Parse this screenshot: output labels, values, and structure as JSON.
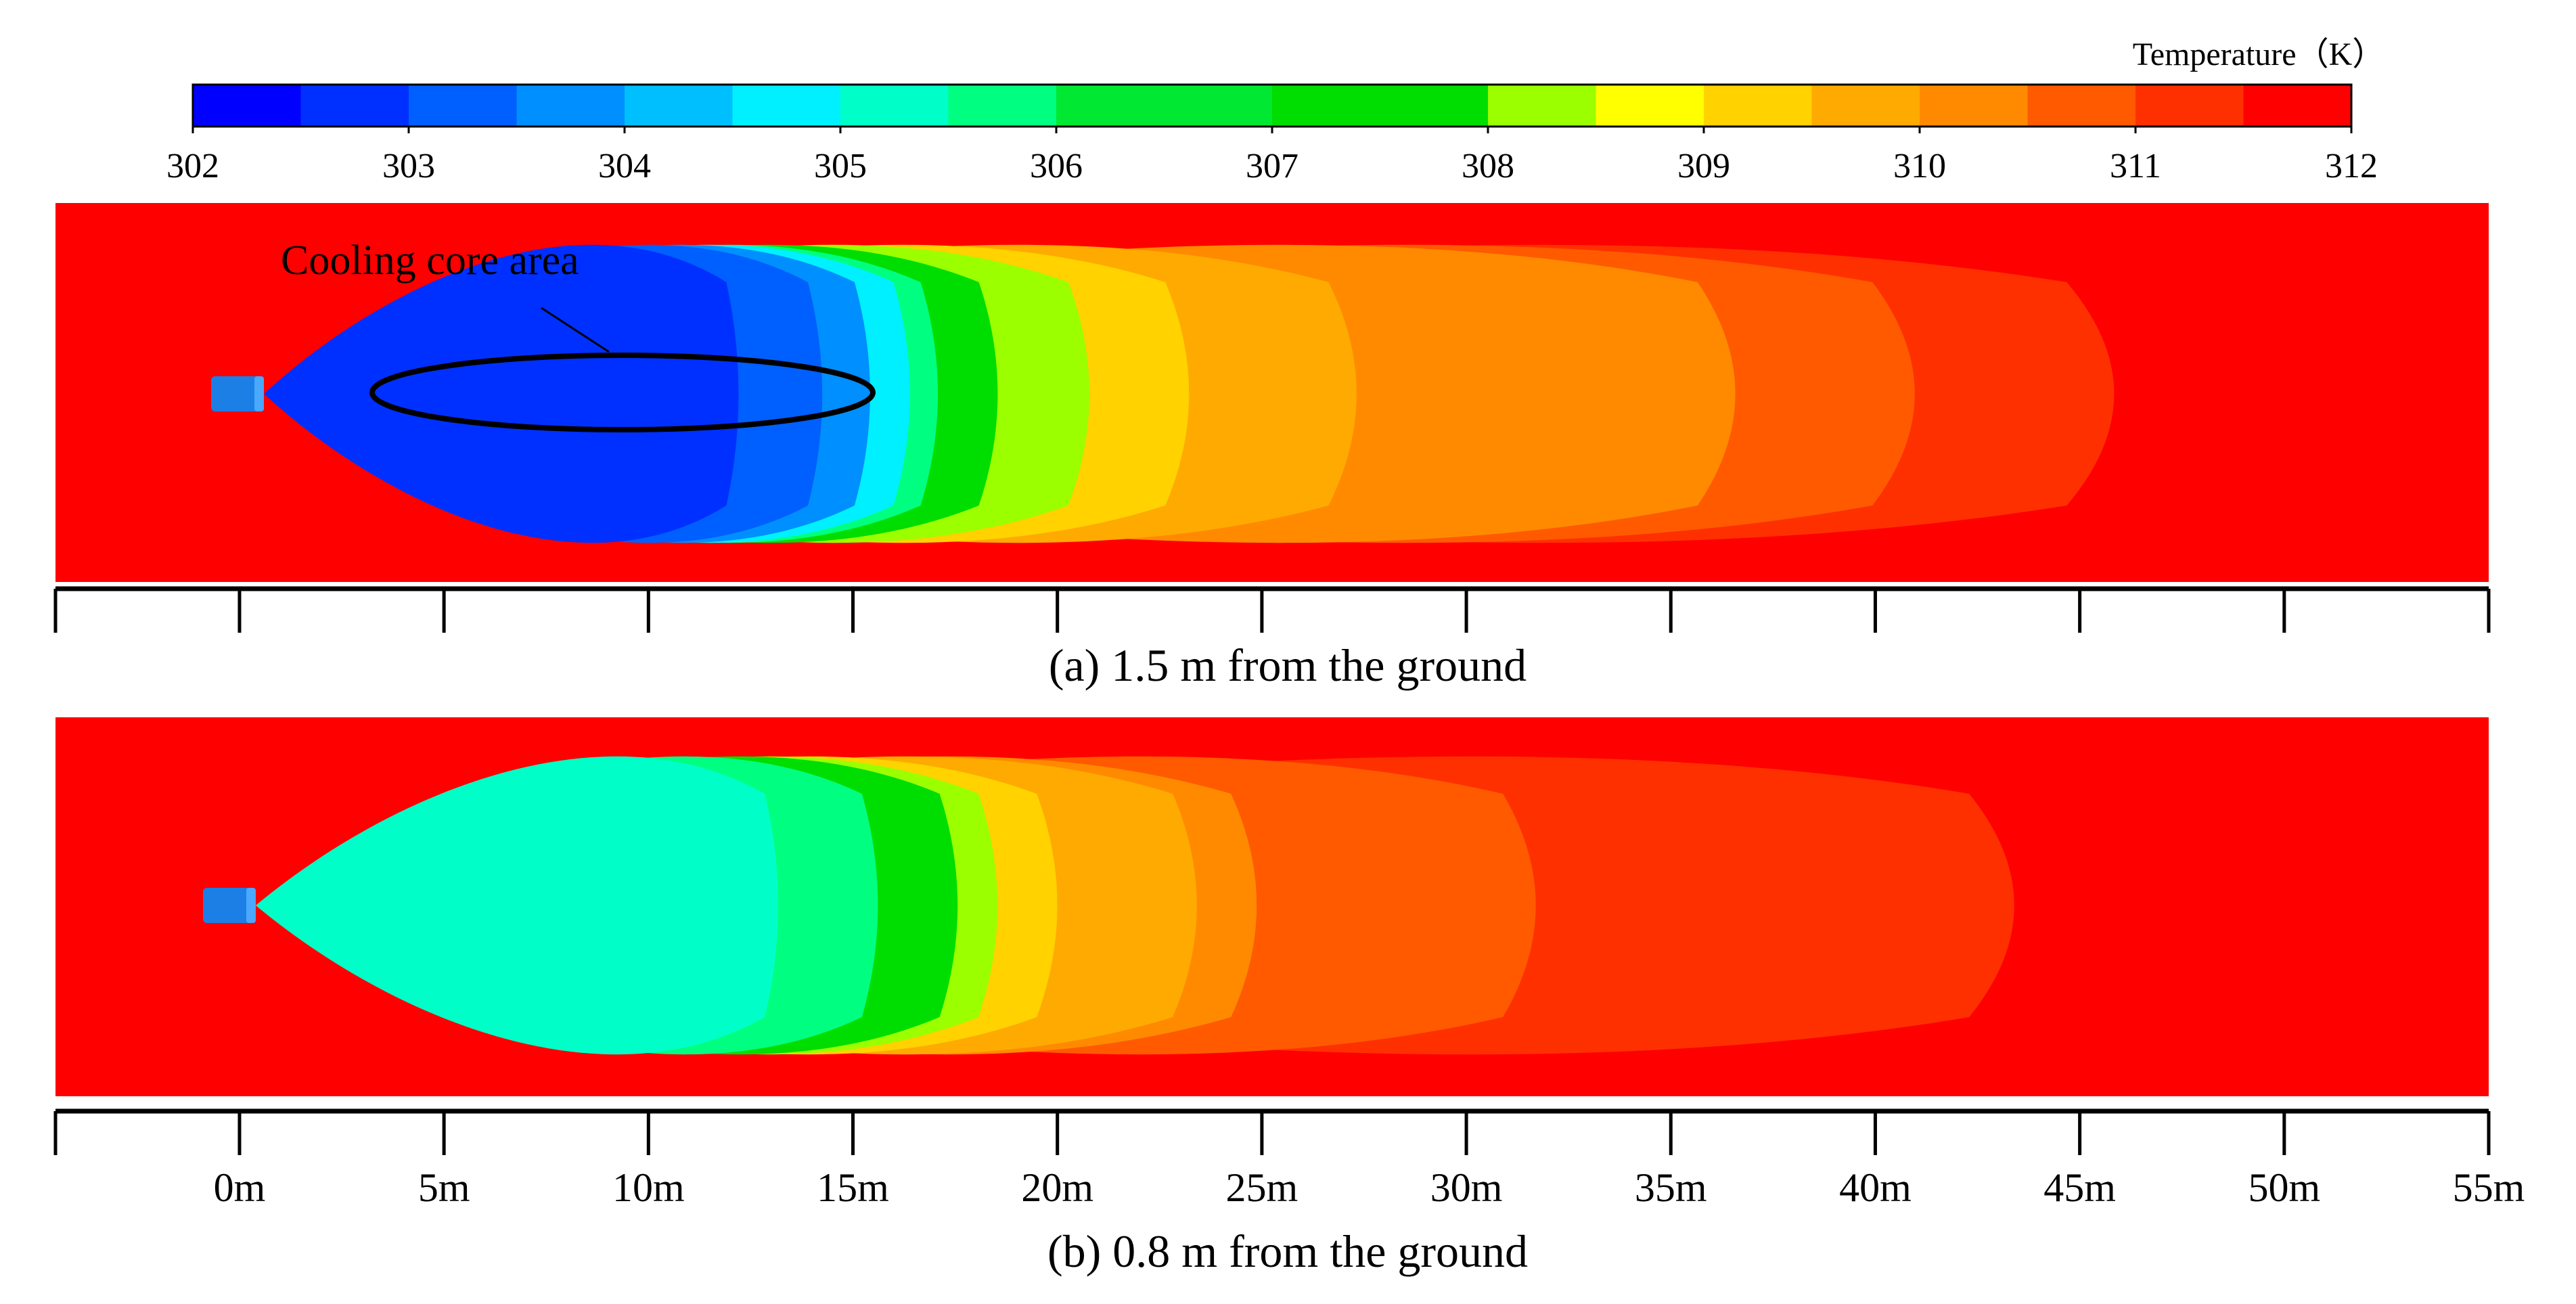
{
  "chart_data": {
    "type": "heatmap",
    "legend": {
      "title": "Temperature（K）",
      "min": 302,
      "max": 312,
      "tick_labels": [
        "302",
        "303",
        "304",
        "305",
        "306",
        "307",
        "308",
        "309",
        "310",
        "311",
        "312"
      ],
      "levels": [
        {
          "from": 302.0,
          "to": 302.5,
          "color": "#0000ff"
        },
        {
          "from": 302.5,
          "to": 303.0,
          "color": "#0030ff"
        },
        {
          "from": 303.0,
          "to": 303.5,
          "color": "#005fff"
        },
        {
          "from": 303.5,
          "to": 304.0,
          "color": "#008fff"
        },
        {
          "from": 304.0,
          "to": 304.5,
          "color": "#00bfff"
        },
        {
          "from": 304.5,
          "to": 305.0,
          "color": "#00f0ff"
        },
        {
          "from": 305.0,
          "to": 305.5,
          "color": "#00ffc8"
        },
        {
          "from": 305.5,
          "to": 306.0,
          "color": "#00ff80"
        },
        {
          "from": 306.0,
          "to": 307.0,
          "color": "#00e832"
        },
        {
          "from": 307.0,
          "to": 308.0,
          "color": "#00dd00"
        },
        {
          "from": 308.0,
          "to": 308.5,
          "color": "#9bff00"
        },
        {
          "from": 308.5,
          "to": 309.0,
          "color": "#ffff00"
        },
        {
          "from": 309.0,
          "to": 309.5,
          "color": "#ffd200"
        },
        {
          "from": 309.5,
          "to": 310.0,
          "color": "#ffaa00"
        },
        {
          "from": 310.0,
          "to": 310.5,
          "color": "#ff8a00"
        },
        {
          "from": 310.5,
          "to": 311.0,
          "color": "#ff5a00"
        },
        {
          "from": 311.0,
          "to": 311.5,
          "color": "#ff3000"
        },
        {
          "from": 311.5,
          "to": 312.0,
          "color": "#ff0000"
        }
      ]
    },
    "x_axis": {
      "labels": [
        "0m",
        "5m",
        "10m",
        "15m",
        "20m",
        "25m",
        "30m",
        "35m",
        "40m",
        "45m",
        "50m",
        "55m"
      ],
      "range": [
        -4.5,
        55
      ],
      "unit": "m"
    },
    "panels": [
      {
        "caption": "(a) 1.5 m from the ground",
        "annotation": "Cooling  core area",
        "core_region_x": [
          3.2,
          15.6
        ],
        "isotherm_extents": [
          {
            "temperature": 311.0,
            "x_end": 47.0
          },
          {
            "temperature": 310.5,
            "x_end": 42.0
          },
          {
            "temperature": 310.0,
            "x_end": 37.5
          },
          {
            "temperature": 309.5,
            "x_end": 28.0
          },
          {
            "temperature": 309.0,
            "x_end": 23.8
          },
          {
            "temperature": 308.0,
            "x_end": 21.3
          },
          {
            "temperature": 307.0,
            "x_end": 19.0
          },
          {
            "temperature": 305.5,
            "x_end": 17.5
          },
          {
            "temperature": 304.5,
            "x_end": 16.8
          },
          {
            "temperature": 303.5,
            "x_end": 15.8
          },
          {
            "temperature": 303.0,
            "x_end": 14.6
          },
          {
            "temperature": 302.5,
            "x_end": 12.5
          }
        ]
      },
      {
        "caption": "(b) 0.8 m from the ground",
        "isotherm_extents": [
          {
            "temperature": 311.0,
            "x_end": 44.5
          },
          {
            "temperature": 310.5,
            "x_end": 32.5
          },
          {
            "temperature": 310.0,
            "x_end": 25.5
          },
          {
            "temperature": 309.5,
            "x_end": 24.0
          },
          {
            "temperature": 309.0,
            "x_end": 20.5
          },
          {
            "temperature": 308.0,
            "x_end": 19.0
          },
          {
            "temperature": 307.0,
            "x_end": 18.0
          },
          {
            "temperature": 305.5,
            "x_end": 16.0
          },
          {
            "temperature": 305.0,
            "x_end": 13.5
          }
        ]
      }
    ],
    "colors": {
      "outline": "#000000",
      "fan_body": "#1c7fe6",
      "fan_face": "#4aa8ff"
    }
  }
}
